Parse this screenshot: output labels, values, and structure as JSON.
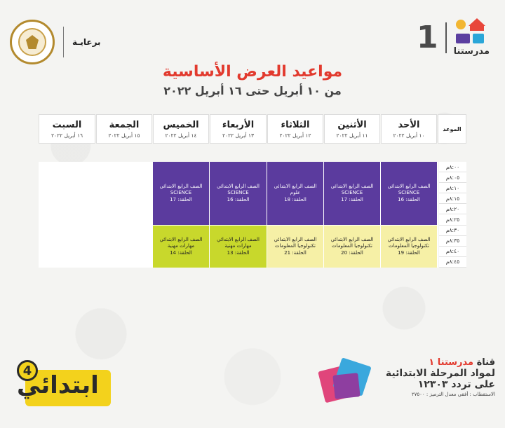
{
  "brand": {
    "number": "1",
    "name": "مدرستنا"
  },
  "sponsor": {
    "label": "برعايـة",
    "ministry_logo": "Ministry of Education and Technical Education"
  },
  "title": "مواعيد العرض الأساسية",
  "subtitle": "من ١٠ أبريل حتى ١٦ أبريل ٢٠٢٢",
  "schedule": {
    "time_header": "الموعد",
    "days": [
      {
        "name": "الأحد",
        "date": "١٠ أبريل ٢٠٢٢"
      },
      {
        "name": "الأثنين",
        "date": "١١ أبريل ٢٠٢٢"
      },
      {
        "name": "الثلاثاء",
        "date": "١٢ أبريل ٢٠٢٢"
      },
      {
        "name": "الأربعاء",
        "date": "١٣ أبريل ٢٠٢٢"
      },
      {
        "name": "الخميس",
        "date": "١٤ أبريل ٢٠٢٢"
      },
      {
        "name": "الجمعة",
        "date": "١٥ أبريل ٢٠٢٢"
      },
      {
        "name": "السبت",
        "date": "١٦ أبريل ٢٠٢٢"
      }
    ],
    "times": [
      "٨:٠٠م",
      "٨:٠٥م",
      "٨:١٠م",
      "٨:١٥م",
      "٨:٢٠م",
      "٨:٢٥م",
      "٨:٣٠م",
      "٨:٣٥م",
      "٨:٤٠م",
      "٨:٤٥م"
    ],
    "slots": [
      {
        "day": "الأحد",
        "color": "purple",
        "lines": [
          "الصف الرابع الابتدائي",
          "SCIENCE",
          "الحلقة: 16"
        ]
      },
      {
        "day": "الأثنين",
        "color": "purple",
        "lines": [
          "الصف الرابع الابتدائي",
          "SCIENCE",
          "الحلقة: 17"
        ]
      },
      {
        "day": "الثلاثاء",
        "color": "purple",
        "lines": [
          "الصف الرابع الابتدائي",
          "علوم",
          "الحلقة: 18"
        ]
      },
      {
        "day": "الأربعاء",
        "color": "purple",
        "lines": [
          "الصف الرابع الابتدائي",
          "SCIENCE",
          "الحلقة: 16"
        ]
      },
      {
        "day": "الخميس",
        "color": "purple",
        "lines": [
          "الصف الرابع الابتدائي",
          "SCIENCE",
          "الحلقة: 17"
        ]
      },
      {
        "day": "الأحد",
        "color": "pale",
        "lines": [
          "الصف الرابع الابتدائي",
          "تكنولوجيا المعلومات",
          "الحلقة: 19"
        ]
      },
      {
        "day": "الأثنين",
        "color": "pale",
        "lines": [
          "الصف الرابع الابتدائي",
          "تكنولوجيا المعلومات",
          "الحلقة: 20"
        ]
      },
      {
        "day": "الثلاثاء",
        "color": "pale",
        "lines": [
          "الصف الرابع الابتدائي",
          "تكنولوجيا المعلومات",
          "الحلقة: 21"
        ]
      },
      {
        "day": "الأربعاء",
        "color": "lime",
        "lines": [
          "الصف الرابع الابتدائي",
          "مهارات مهنية",
          "الحلقة: 13"
        ]
      },
      {
        "day": "الخميس",
        "color": "lime",
        "lines": [
          "الصف الرابع الابتدائي",
          "مهارات مهنية",
          "الحلقة: 14"
        ]
      }
    ]
  },
  "colors": {
    "title_red": "#e23a2e",
    "purple": "#5b3b9e",
    "lime": "#c8d82c",
    "pale_yellow": "#f6f0a6"
  },
  "footer": {
    "channel_prefix": "قناة ",
    "channel_name": "مدرستنا ١",
    "line2": "لمواد المرحلة الابتدائية",
    "line3": "على تردد ١٢٣٠٣",
    "reception": "الاستقطاب : أفقي معدل الترميز : ٢٧٥٠٠",
    "badge_text": "ابتدائي",
    "badge_num": "4"
  }
}
